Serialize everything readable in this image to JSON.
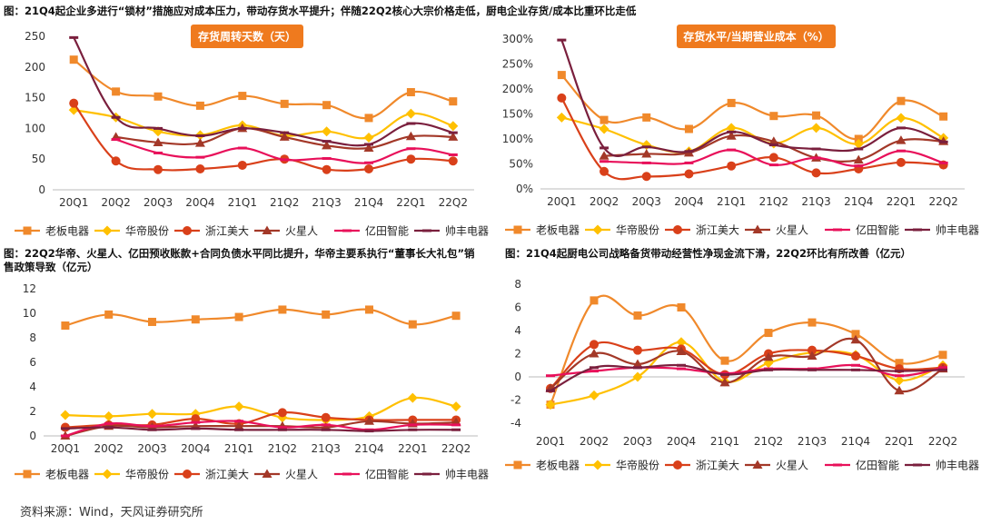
{
  "titles": {
    "top": "图：21Q4起企业多进行“锁材”措施应对成本压力，带动存货水平提升；伴随22Q2核心大宗价格走低，厨电企业存货/成本比重环比走低",
    "bottom_left": "图：22Q2华帝、火星人、亿田预收账款+合同负债水平同比提升，华帝主要系执行“董事长大礼包”销售政策导致（亿元）",
    "bottom_right": "图：21Q4起厨电公司战略备货带动经营性净现金流下滑，22Q2环比有所改善（亿元）"
  },
  "source": "资料来源：Wind，天风证券研究所",
  "colors": {
    "老板电器": "#F0892B",
    "华帝股份": "#FFC000",
    "浙江美大": "#D9401A",
    "火星人": "#A33828",
    "亿田智能": "#E8105A",
    "帅丰电器": "#7A1F3D",
    "badge": "#EF7A1E"
  },
  "chart_data": [
    {
      "id": "inventory_days",
      "type": "line",
      "badge": "存货周转天数（天）",
      "categories": [
        "20Q1",
        "20Q2",
        "20Q3",
        "20Q4",
        "21Q1",
        "21Q2",
        "21Q3",
        "21Q4",
        "22Q1",
        "22Q2"
      ],
      "ylim": [
        0,
        250
      ],
      "yticks": [
        0,
        50,
        100,
        150,
        200,
        250
      ],
      "ytick_labels": [
        "0",
        "50",
        "100",
        "150",
        "200",
        "250"
      ],
      "series": [
        {
          "name": "老板电器",
          "marker": "square",
          "values": [
            212,
            160,
            152,
            137,
            153,
            140,
            138,
            117,
            159,
            144
          ]
        },
        {
          "name": "华帝股份",
          "marker": "diamond",
          "values": [
            130,
            118,
            95,
            89,
            105,
            88,
            95,
            85,
            124,
            104
          ]
        },
        {
          "name": "浙江美大",
          "marker": "circle",
          "values": [
            141,
            47,
            33,
            34,
            40,
            50,
            33,
            34,
            50,
            47
          ]
        },
        {
          "name": "火星人",
          "marker": "triangle",
          "values": [
            null,
            86,
            77,
            76,
            100,
            86,
            72,
            68,
            87,
            86
          ]
        },
        {
          "name": "亿田智能",
          "marker": "dash",
          "values": [
            null,
            82,
            60,
            53,
            68,
            49,
            51,
            44,
            67,
            57
          ]
        },
        {
          "name": "帅丰电器",
          "marker": "dash",
          "values": [
            248,
            118,
            100,
            88,
            100,
            93,
            79,
            74,
            108,
            93
          ]
        }
      ]
    },
    {
      "id": "inventory_pct",
      "type": "line",
      "badge": "存货水平/当期营业成本（%）",
      "categories": [
        "20Q1",
        "20Q2",
        "20Q3",
        "20Q4",
        "21Q1",
        "21Q2",
        "21Q3",
        "21Q4",
        "22Q1",
        "22Q2"
      ],
      "ylim": [
        0,
        300
      ],
      "yticks": [
        0,
        50,
        100,
        150,
        200,
        250,
        300
      ],
      "ytick_labels": [
        "0%",
        "50%",
        "100%",
        "150%",
        "200%",
        "250%",
        "300%"
      ],
      "series": [
        {
          "name": "老板电器",
          "marker": "square",
          "values": [
            228,
            138,
            143,
            120,
            172,
            146,
            147,
            100,
            176,
            145
          ]
        },
        {
          "name": "华帝股份",
          "marker": "diamond",
          "values": [
            143,
            120,
            88,
            75,
            122,
            91,
            122,
            90,
            142,
            102
          ]
        },
        {
          "name": "浙江美大",
          "marker": "circle",
          "values": [
            182,
            35,
            25,
            30,
            46,
            63,
            32,
            40,
            53,
            48
          ]
        },
        {
          "name": "火星人",
          "marker": "triangle",
          "values": [
            null,
            66,
            70,
            72,
            106,
            95,
            62,
            58,
            97,
            95
          ]
        },
        {
          "name": "亿田智能",
          "marker": "dash",
          "values": [
            null,
            55,
            52,
            52,
            78,
            48,
            62,
            46,
            76,
            52
          ]
        },
        {
          "name": "帅丰电器",
          "marker": "dash",
          "values": [
            298,
            82,
            84,
            75,
            114,
            88,
            80,
            80,
            122,
            94
          ]
        }
      ]
    },
    {
      "id": "advance_receipts",
      "type": "line",
      "badge": "",
      "categories": [
        "20Q1",
        "20Q2",
        "20Q3",
        "20Q4",
        "21Q1",
        "21Q2",
        "21Q3",
        "21Q4",
        "22Q1",
        "22Q2"
      ],
      "ylim": [
        0,
        12
      ],
      "yticks": [
        0,
        2,
        4,
        6,
        8,
        10,
        12
      ],
      "ytick_labels": [
        "0",
        "2",
        "4",
        "6",
        "8",
        "10",
        "12"
      ],
      "series": [
        {
          "name": "老板电器",
          "marker": "square",
          "values": [
            9.0,
            9.9,
            9.3,
            9.5,
            9.7,
            10.3,
            9.9,
            10.3,
            9.1,
            9.8
          ]
        },
        {
          "name": "华帝股份",
          "marker": "diamond",
          "values": [
            1.7,
            1.6,
            1.8,
            1.8,
            2.4,
            1.5,
            1.3,
            1.6,
            3.1,
            2.4
          ]
        },
        {
          "name": "浙江美大",
          "marker": "circle",
          "values": [
            0.7,
            0.9,
            0.9,
            1.4,
            1.0,
            1.9,
            1.5,
            1.3,
            1.3,
            1.3
          ]
        },
        {
          "name": "火星人",
          "marker": "triangle",
          "values": [
            0.0,
            0.8,
            0.7,
            0.8,
            0.8,
            0.8,
            0.7,
            1.2,
            1.0,
            1.1
          ]
        },
        {
          "name": "亿田智能",
          "marker": "dash",
          "values": [
            0.0,
            1.0,
            0.8,
            1.1,
            1.2,
            0.7,
            0.9,
            0.5,
            0.9,
            0.9
          ]
        },
        {
          "name": "帅丰电器",
          "marker": "dash",
          "values": [
            0.6,
            0.7,
            0.5,
            0.6,
            0.5,
            0.5,
            0.5,
            0.4,
            0.5,
            0.5
          ]
        }
      ]
    },
    {
      "id": "operating_cash_flow",
      "type": "line",
      "badge": "",
      "categories": [
        "20Q1",
        "20Q2",
        "20Q3",
        "20Q4",
        "21Q1",
        "21Q2",
        "21Q3",
        "21Q4",
        "22Q1",
        "22Q2"
      ],
      "ylim": [
        -4,
        8
      ],
      "yticks": [
        -4,
        -2,
        0,
        2,
        4,
        6,
        8
      ],
      "ytick_labels": [
        "-4",
        "-2",
        "0",
        "2",
        "4",
        "6",
        "8"
      ],
      "series": [
        {
          "name": "老板电器",
          "marker": "square",
          "values": [
            -2.4,
            6.6,
            5.3,
            6.0,
            1.4,
            3.8,
            4.7,
            3.7,
            1.2,
            1.9
          ]
        },
        {
          "name": "华帝股份",
          "marker": "diamond",
          "values": [
            -2.4,
            -1.6,
            0.0,
            3.0,
            -0.4,
            1.2,
            2.1,
            1.9,
            -0.3,
            1.0
          ]
        },
        {
          "name": "浙江美大",
          "marker": "circle",
          "values": [
            -1.0,
            2.8,
            2.3,
            2.4,
            0.2,
            2.0,
            2.3,
            1.8,
            0.7,
            0.8
          ]
        },
        {
          "name": "火星人",
          "marker": "triangle",
          "values": [
            -1.0,
            2.0,
            1.1,
            2.2,
            -0.5,
            1.7,
            1.8,
            3.2,
            -1.2,
            0.7
          ]
        },
        {
          "name": "亿田智能",
          "marker": "dash",
          "values": [
            0.1,
            0.5,
            0.8,
            0.7,
            0.3,
            0.7,
            0.7,
            1.0,
            0.1,
            0.8
          ]
        },
        {
          "name": "帅丰电器",
          "marker": "dash",
          "values": [
            -1.2,
            0.8,
            0.8,
            1.0,
            0.2,
            0.6,
            0.6,
            0.6,
            0.5,
            0.6
          ]
        }
      ]
    }
  ]
}
